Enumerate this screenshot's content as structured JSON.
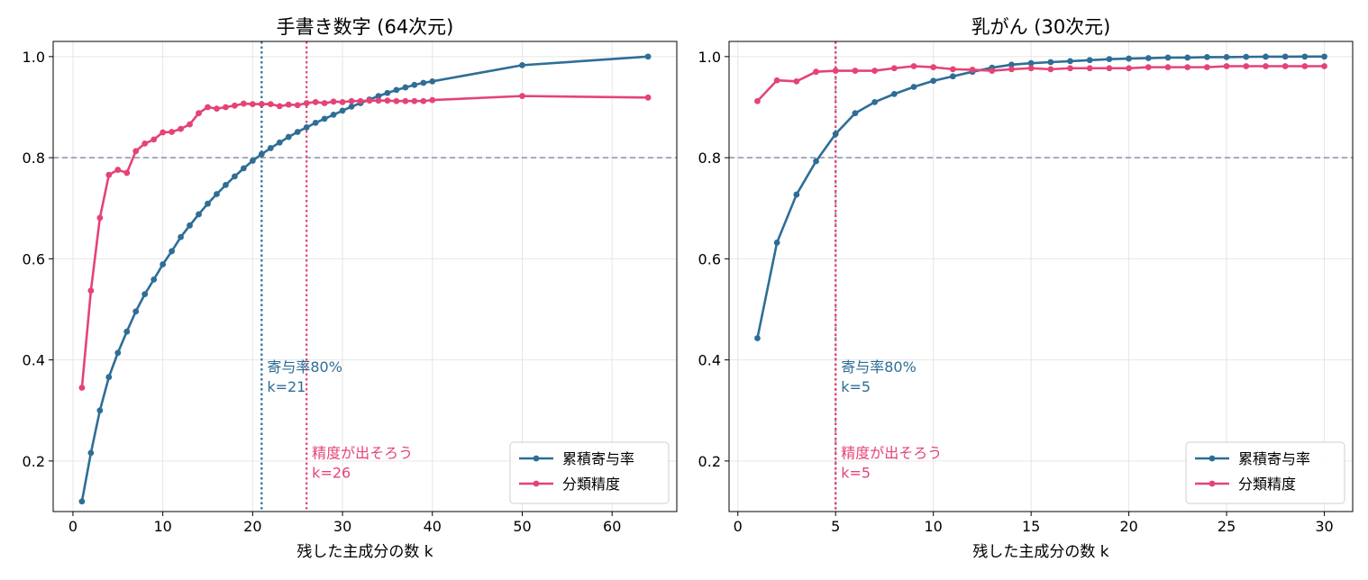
{
  "colors": {
    "cumulative": "#2e6e96",
    "accuracy": "#e44475",
    "threshold": "#9499b4",
    "grid": "#e6e6e6"
  },
  "chart_data": [
    {
      "type": "line",
      "title": "手書き数字 (64次元)",
      "xlabel": "残した主成分の数 k",
      "ylabel": "",
      "xlim": [
        -2.2,
        67.2
      ],
      "ylim": [
        0.1,
        1.03
      ],
      "xticks": [
        0,
        10,
        20,
        30,
        40,
        50,
        60
      ],
      "yticks": [
        0.2,
        0.4,
        0.6,
        0.8,
        1.0
      ],
      "ytick_labels": [
        "0.2",
        "0.4",
        "0.6",
        "0.8",
        "1.0"
      ],
      "grid": true,
      "legend_position": "lower right",
      "threshold_y": 0.8,
      "series": [
        {
          "name": "累積寄与率",
          "color_key": "cumulative",
          "x": [
            1,
            2,
            3,
            4,
            5,
            6,
            7,
            8,
            9,
            10,
            11,
            12,
            13,
            14,
            15,
            16,
            17,
            18,
            19,
            20,
            21,
            22,
            23,
            24,
            25,
            26,
            27,
            28,
            29,
            30,
            31,
            32,
            33,
            34,
            35,
            36,
            37,
            38,
            39,
            40,
            50,
            64
          ],
          "y": [
            0.12,
            0.216,
            0.3,
            0.366,
            0.414,
            0.456,
            0.496,
            0.53,
            0.559,
            0.589,
            0.615,
            0.643,
            0.666,
            0.688,
            0.709,
            0.728,
            0.746,
            0.763,
            0.779,
            0.794,
            0.807,
            0.819,
            0.83,
            0.841,
            0.851,
            0.86,
            0.869,
            0.877,
            0.885,
            0.893,
            0.901,
            0.908,
            0.915,
            0.922,
            0.928,
            0.934,
            0.939,
            0.944,
            0.948,
            0.951,
            0.983,
            1.0
          ]
        },
        {
          "name": "分類精度",
          "color_key": "accuracy",
          "x": [
            1,
            2,
            3,
            4,
            5,
            6,
            7,
            8,
            9,
            10,
            11,
            12,
            13,
            14,
            15,
            16,
            17,
            18,
            19,
            20,
            21,
            22,
            23,
            24,
            25,
            26,
            27,
            28,
            29,
            30,
            31,
            32,
            33,
            34,
            35,
            36,
            37,
            38,
            39,
            40,
            50,
            64
          ],
          "y": [
            0.345,
            0.537,
            0.681,
            0.766,
            0.776,
            0.77,
            0.813,
            0.828,
            0.836,
            0.85,
            0.851,
            0.857,
            0.866,
            0.888,
            0.9,
            0.897,
            0.9,
            0.903,
            0.907,
            0.906,
            0.906,
            0.906,
            0.902,
            0.905,
            0.904,
            0.908,
            0.91,
            0.908,
            0.911,
            0.91,
            0.912,
            0.912,
            0.913,
            0.913,
            0.913,
            0.912,
            0.912,
            0.912,
            0.912,
            0.914,
            0.922,
            0.919
          ]
        }
      ],
      "vlines": [
        {
          "x": 21,
          "color_key": "cumulative",
          "line1": "寄与率80%",
          "line2": "k=21",
          "text_y": 0.355
        },
        {
          "x": 26,
          "color_key": "accuracy",
          "line1": "精度が出そろう",
          "line2": "k=26",
          "text_y": 0.185
        }
      ]
    },
    {
      "type": "line",
      "title": "乳がん (30次元)",
      "xlabel": "残した主成分の数 k",
      "ylabel": "",
      "xlim": [
        -0.45,
        31.45
      ],
      "ylim": [
        0.1,
        1.03
      ],
      "xticks": [
        0,
        5,
        10,
        15,
        20,
        25,
        30
      ],
      "yticks": [
        0.2,
        0.4,
        0.6,
        0.8,
        1.0
      ],
      "ytick_labels": [
        "0.2",
        "0.4",
        "0.6",
        "0.8",
        "1.0"
      ],
      "grid": true,
      "legend_position": "lower right",
      "threshold_y": 0.8,
      "series": [
        {
          "name": "累積寄与率",
          "color_key": "cumulative",
          "x": [
            1,
            2,
            3,
            4,
            5,
            6,
            7,
            8,
            9,
            10,
            11,
            12,
            13,
            14,
            15,
            16,
            17,
            18,
            19,
            20,
            21,
            22,
            23,
            24,
            25,
            26,
            27,
            28,
            29,
            30
          ],
          "y": [
            0.443,
            0.632,
            0.727,
            0.793,
            0.847,
            0.888,
            0.91,
            0.926,
            0.94,
            0.952,
            0.961,
            0.97,
            0.978,
            0.984,
            0.987,
            0.989,
            0.991,
            0.993,
            0.995,
            0.996,
            0.997,
            0.998,
            0.998,
            0.999,
            0.999,
            0.9995,
            0.9998,
            0.9999,
            1.0,
            1.0
          ]
        },
        {
          "name": "分類精度",
          "color_key": "accuracy",
          "x": [
            1,
            2,
            3,
            4,
            5,
            6,
            7,
            8,
            9,
            10,
            11,
            12,
            13,
            14,
            15,
            16,
            17,
            18,
            19,
            20,
            21,
            22,
            23,
            24,
            25,
            26,
            27,
            28,
            29,
            30
          ],
          "y": [
            0.912,
            0.953,
            0.951,
            0.97,
            0.972,
            0.972,
            0.972,
            0.977,
            0.981,
            0.979,
            0.975,
            0.974,
            0.972,
            0.975,
            0.977,
            0.975,
            0.977,
            0.977,
            0.977,
            0.977,
            0.979,
            0.979,
            0.979,
            0.979,
            0.981,
            0.981,
            0.981,
            0.981,
            0.981,
            0.981
          ]
        }
      ],
      "vlines": [
        {
          "x": 5,
          "color_key": "accuracy",
          "overlay_key": "cumulative",
          "line1": "寄与率80%",
          "line2": "k=5",
          "text_y": 0.355,
          "text_color_key": "cumulative"
        },
        {
          "x": 5,
          "color_key": "accuracy",
          "line1": "精度が出そろう",
          "line2": "k=5",
          "text_y": 0.185,
          "text_color_key": "accuracy"
        }
      ]
    }
  ]
}
